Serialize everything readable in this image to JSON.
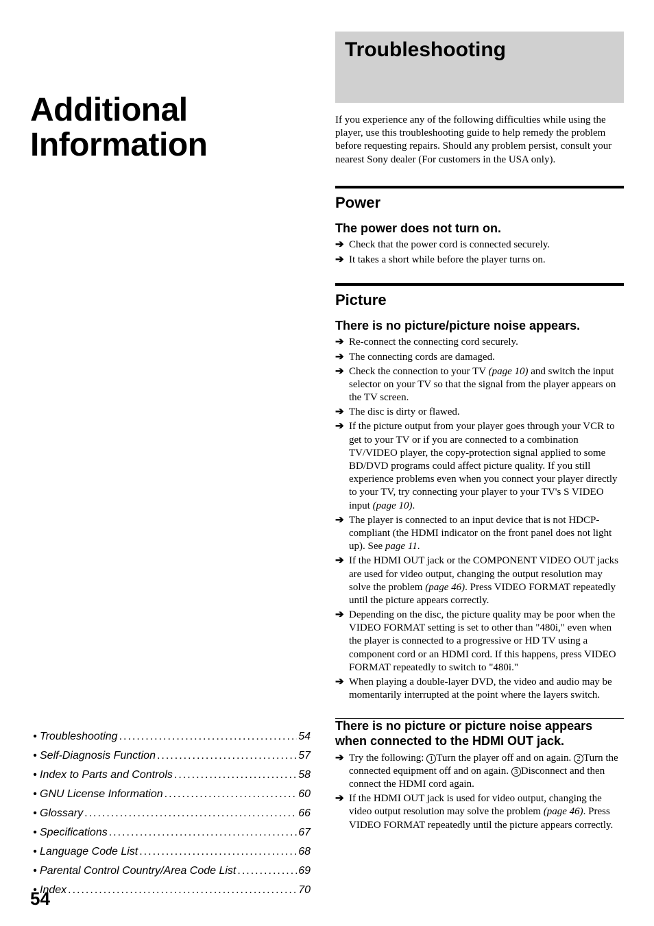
{
  "page_number": "54",
  "left": {
    "chapter_title_line1": "Additional",
    "chapter_title_line2": "Information",
    "toc": [
      {
        "label": "Troubleshooting",
        "page": "54"
      },
      {
        "label": "Self-Diagnosis Function",
        "page": "57"
      },
      {
        "label": "Index to Parts and Controls",
        "page": "58"
      },
      {
        "label": "GNU License Information",
        "page": "60"
      },
      {
        "label": "Glossary",
        "page": "66"
      },
      {
        "label": "Specifications",
        "page": "67"
      },
      {
        "label": "Language Code List",
        "page": "68"
      },
      {
        "label": "Parental Control Country/Area Code List",
        "page": "69"
      },
      {
        "label": "Index",
        "page": "70"
      }
    ]
  },
  "right": {
    "banner_title": "Troubleshooting",
    "intro": "If you experience any of the following difficulties while using the player, use this troubleshooting guide to help remedy the problem before requesting repairs. Should any problem persist, consult your nearest Sony dealer (For customers in the USA only).",
    "sections": [
      {
        "title": "Power",
        "thick": true,
        "problems": [
          {
            "title": "The power does not turn on.",
            "bullets": [
              {
                "text": "Check that the power cord is connected securely."
              },
              {
                "text": "It takes a short while before the player turns on."
              }
            ]
          }
        ]
      },
      {
        "title": "Picture",
        "thick": true,
        "problems": [
          {
            "title": "There is no picture/picture noise appears.",
            "bullets": [
              {
                "text": "Re-connect the connecting cord securely."
              },
              {
                "text": "The connecting cords are damaged."
              },
              {
                "text": "Check the connection to your TV ",
                "ref": "(page 10)",
                "after": " and switch the input selector on your TV so that the signal from the player appears on the TV screen."
              },
              {
                "text": "The disc is dirty or flawed."
              },
              {
                "text": "If the picture output from your player goes through your VCR to get to your TV or if you are connected to a combination TV/VIDEO player, the copy-protection signal applied to some BD/DVD programs could affect picture quality. If you still experience problems even when you connect your player directly to your TV, try connecting your player to your TV's S VIDEO input ",
                "ref": "(page 10)",
                "after": "."
              },
              {
                "text": "The player is connected to an input device that is not HDCP-compliant (the HDMI indicator on the front panel does not light up). See ",
                "ref": "page 11",
                "after": "."
              },
              {
                "text": "If the HDMI OUT jack or the COMPONENT VIDEO OUT jacks are used for video output, changing the output resolution may solve the problem ",
                "ref": "(page 46)",
                "after": ". Press VIDEO FORMAT repeatedly until the picture appears correctly."
              },
              {
                "text": "Depending on the disc, the picture quality may be poor when the VIDEO FORMAT setting is set to other than \"480i,\" even when the player is connected to a progressive or HD TV using a component cord or an HDMI cord. If this happens, press VIDEO FORMAT repeatedly to switch to \"480i.\""
              },
              {
                "text": "When playing a double-layer DVD, the video and audio may be momentarily interrupted at the point where the layers switch."
              }
            ]
          }
        ]
      },
      {
        "title": null,
        "thick": false,
        "problems": [
          {
            "title": "There is no picture or picture noise appears when connected to the HDMI OUT jack.",
            "bullets": [
              {
                "html": true,
                "text": "Try the following: <span class=\"circled\">1</span>Turn the player off and on again. <span class=\"circled\">2</span>Turn the connected equipment off and on again. <span class=\"circled\">3</span>Disconnect and then connect the HDMI cord again."
              },
              {
                "text": "If the HDMI OUT jack is used for video output, changing the video output resolution may solve the problem ",
                "ref": "(page 46)",
                "after": ". Press VIDEO FORMAT repeatedly until the picture appears correctly."
              }
            ]
          }
        ]
      }
    ]
  }
}
